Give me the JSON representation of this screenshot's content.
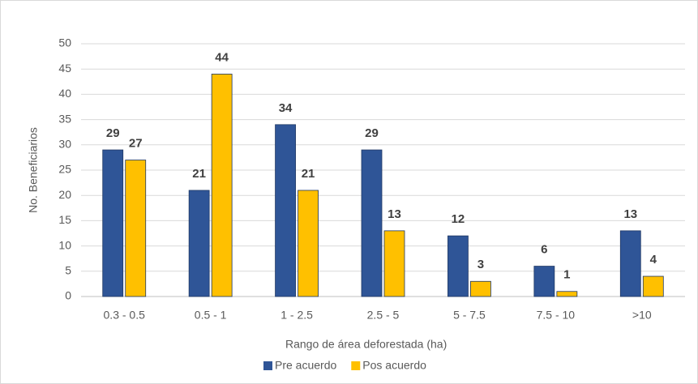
{
  "chart_data": {
    "type": "bar",
    "categories": [
      "0.3 - 0.5",
      "0.5 - 1",
      "1 - 2.5",
      "2.5 - 5",
      "5 - 7.5",
      "7.5 - 10",
      ">10"
    ],
    "series": [
      {
        "name": "Pre acuerdo",
        "color": "#2f5597",
        "values": [
          29,
          21,
          34,
          29,
          12,
          6,
          13
        ]
      },
      {
        "name": "Pos acuerdo",
        "color": "#ffc000",
        "values": [
          27,
          44,
          21,
          13,
          3,
          1,
          4
        ]
      }
    ],
    "xlabel": "Rango de área deforestada (ha)",
    "ylabel": "No. Beneficiarios",
    "ylim": [
      0,
      50
    ],
    "yticks": [
      0,
      5,
      10,
      15,
      20,
      25,
      30,
      35,
      40,
      45,
      50
    ],
    "grid": true,
    "legend": "bottom"
  }
}
